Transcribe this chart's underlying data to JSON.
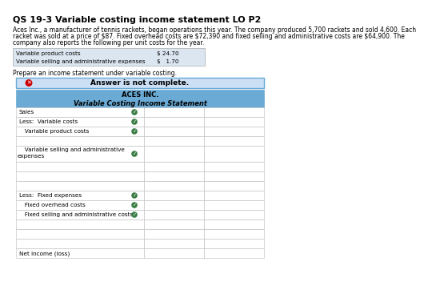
{
  "title": "QS 19-3 Variable costing income statement LO P2",
  "para_line1": "Aces Inc., a manufacturer of tennis rackets, began operations this year. The company produced 5,700 rackets and sold 4,600. Each",
  "para_line2": "racket was sold at a price of $87. Fixed overhead costs are $72,390 and fixed selling and administrative costs are $64,900. The",
  "para_line3": "company also reports the following per unit costs for the year.",
  "tbl_rows": [
    [
      "Variable product costs",
      "$ 24.70"
    ],
    [
      "Variable selling and administrative expenses",
      "$   1.70"
    ]
  ],
  "prepare_text": "Prepare an income statement under variable costing.",
  "banner_text": "Answer is not complete.",
  "company_name": "ACES INC.",
  "stmt_title": "Variable Costing Income Statement",
  "rows": [
    {
      "label": "Sales",
      "check": true,
      "indent": false,
      "tall": false
    },
    {
      "label": "Less:  Variable costs",
      "check": true,
      "indent": false,
      "tall": false
    },
    {
      "label": "   Variable product costs",
      "check": true,
      "indent": true,
      "tall": false
    },
    {
      "label": "",
      "check": false,
      "indent": false,
      "tall": false
    },
    {
      "label": "   Variable selling and administrative\n   expenses",
      "check": true,
      "indent": true,
      "tall": true
    },
    {
      "label": "",
      "check": false,
      "indent": false,
      "tall": false
    },
    {
      "label": "",
      "check": false,
      "indent": false,
      "tall": false
    },
    {
      "label": "",
      "check": false,
      "indent": false,
      "tall": false
    },
    {
      "label": "Less:  Fixed expenses",
      "check": true,
      "indent": false,
      "tall": false
    },
    {
      "label": "   Fixed overhead costs",
      "check": true,
      "indent": true,
      "tall": false
    },
    {
      "label": "   Fixed selling and administrative costs",
      "check": true,
      "indent": true,
      "tall": false
    },
    {
      "label": "",
      "check": false,
      "indent": false,
      "tall": false
    },
    {
      "label": "",
      "check": false,
      "indent": false,
      "tall": false
    },
    {
      "label": "",
      "check": false,
      "indent": false,
      "tall": false
    },
    {
      "label": "Net income (loss)",
      "check": false,
      "indent": false,
      "tall": false
    }
  ],
  "banner_bg": "#cce0f5",
  "banner_border": "#6aaad4",
  "hdr_bg": "#6aaad4",
  "cell_bg": "#ffffff",
  "cell_border": "#bbbbbb",
  "small_tbl_bg": "#dce6f1",
  "small_tbl_border": "#aaaaaa",
  "check_bg": "#3a7d44",
  "check_fg": "#ffffff",
  "red_x_bg": "#cc0000",
  "red_x_fg": "#ffffff"
}
